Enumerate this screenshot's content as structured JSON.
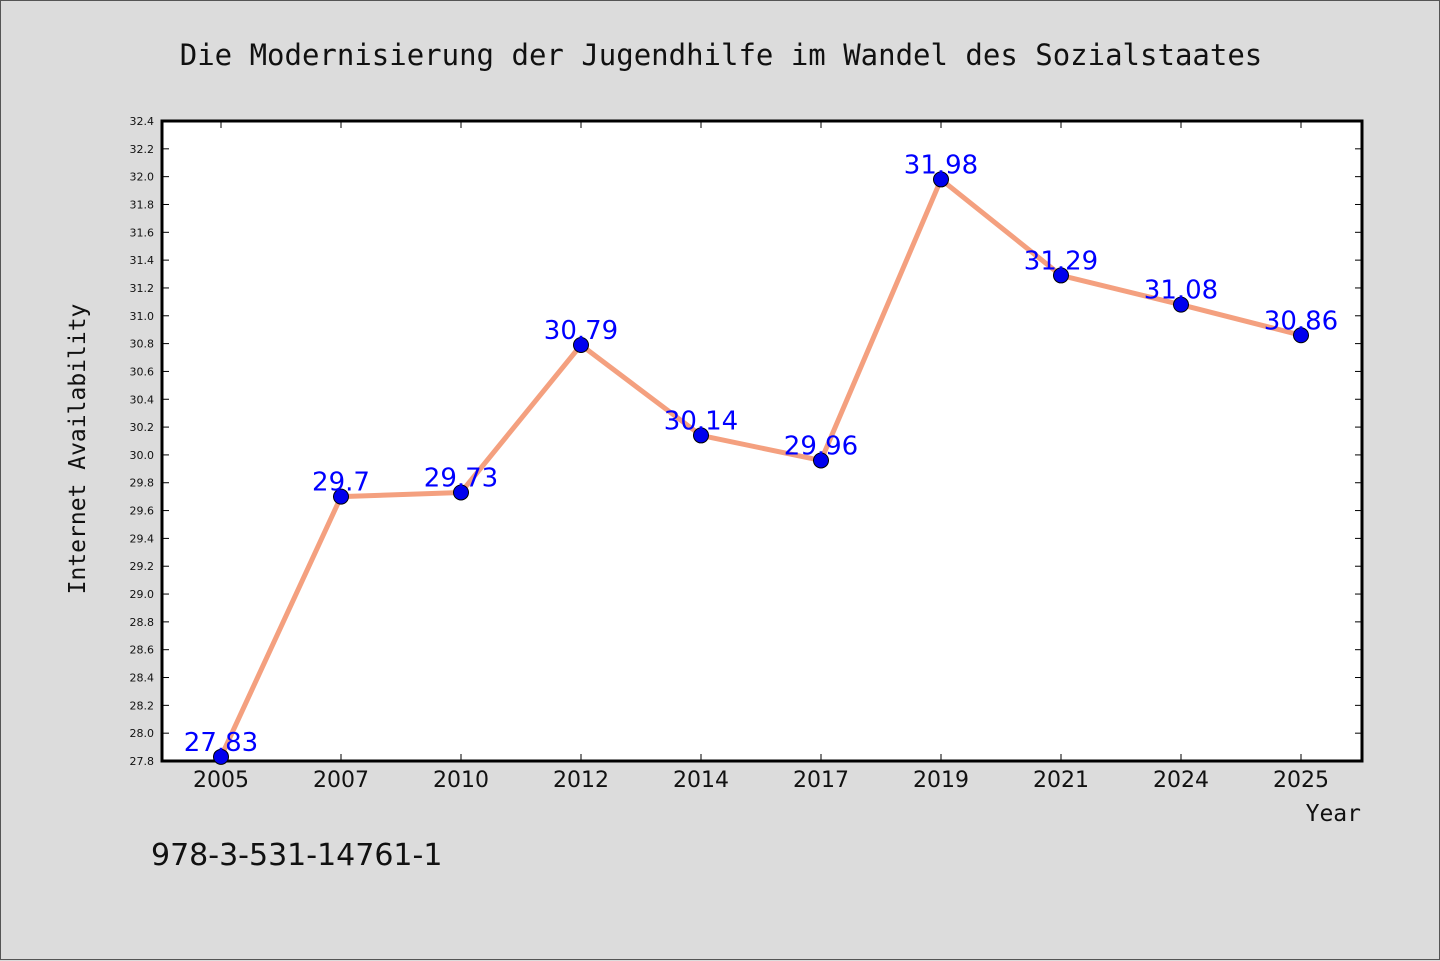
{
  "chart_data": {
    "type": "line",
    "title": "Die Modernisierung der Jugendhilfe im Wandel des Sozialstaates",
    "xlabel": "Year",
    "ylabel": "Internet Availability",
    "categories": [
      "2005",
      "2007",
      "2010",
      "2012",
      "2014",
      "2017",
      "2019",
      "2021",
      "2024",
      "2025"
    ],
    "series": [
      {
        "values": [
          27.83,
          29.7,
          29.73,
          30.79,
          30.14,
          29.96,
          31.98,
          31.29,
          31.08,
          30.86
        ],
        "data_labels": [
          "27.83",
          "29.7",
          "29.73",
          "30.79",
          "30.14",
          "29.96",
          "31.98",
          "31.29",
          "31.08",
          "30.86"
        ],
        "line_color": "#f4a07f",
        "marker_color": "#0000ee"
      }
    ],
    "ylim": [
      27.8,
      32.4
    ],
    "yticks": [
      "27.8",
      "28.0",
      "28.2",
      "28.4",
      "28.6",
      "28.8",
      "29.0",
      "29.2",
      "29.4",
      "29.6",
      "29.8",
      "30.0",
      "30.2",
      "30.4",
      "30.6",
      "30.8",
      "31.0",
      "31.2",
      "31.4",
      "31.6",
      "31.8",
      "32.0",
      "32.2",
      "32.4"
    ],
    "grid": false,
    "legend": "none",
    "background": "#dcdcdc",
    "plot_background": "#ffffff"
  },
  "footer": {
    "text": "978-3-531-14761-1"
  }
}
